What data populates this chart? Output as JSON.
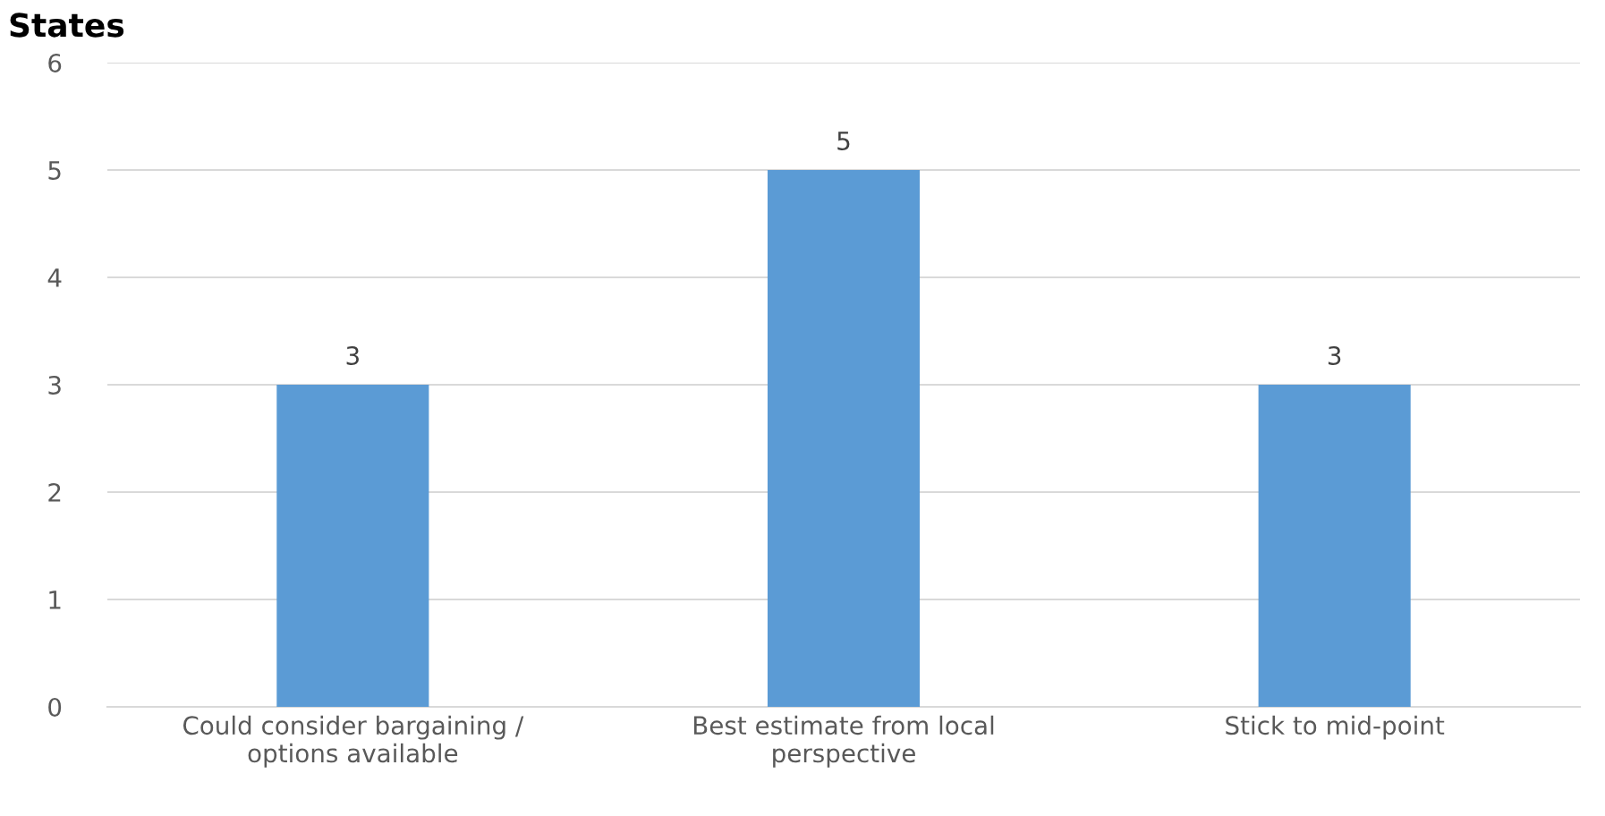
{
  "chart_data": {
    "type": "bar",
    "title": "States",
    "categories": [
      "Could consider bargaining /\noptions available",
      "Best estimate from local\nperspective",
      "Stick to mid-point"
    ],
    "values": [
      3,
      5,
      3
    ],
    "color": "#5b9bd5",
    "ylim": [
      0,
      6
    ],
    "yticks": [
      0,
      1,
      2,
      3,
      4,
      5,
      6
    ],
    "grid": "y",
    "data_labels": true
  }
}
